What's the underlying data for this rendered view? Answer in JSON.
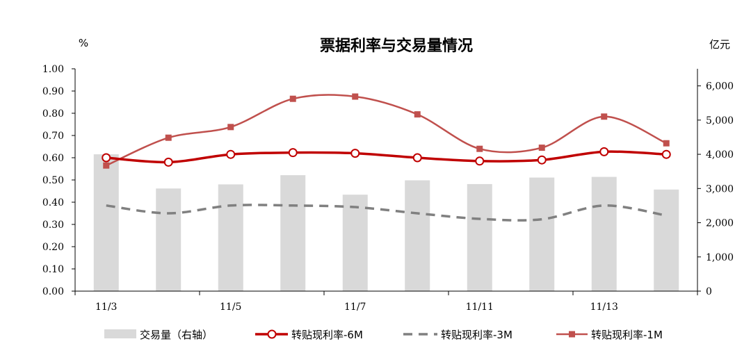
{
  "chart_data": {
    "type": "bar+line",
    "title": "票据利率与交易量情况",
    "left_unit": "%",
    "right_unit": "亿元",
    "categories": [
      "11/3",
      "",
      "11/5",
      "",
      "11/7",
      "",
      "11/11",
      "",
      "11/13",
      ""
    ],
    "ylim_left": [
      0,
      1.0
    ],
    "ylim_right": [
      0,
      6500
    ],
    "left_ticks": [
      "0.00",
      "0.10",
      "0.20",
      "0.30",
      "0.40",
      "0.50",
      "0.60",
      "0.70",
      "0.80",
      "0.90",
      "1.00"
    ],
    "right_ticks": [
      "0",
      "1,000",
      "2,000",
      "3,000",
      "4,000",
      "5,000",
      "6,000"
    ],
    "bars": {
      "name": "交易量（右轴）",
      "axis": "right",
      "color": "#d9d9d9",
      "values": [
        4000,
        3000,
        3120,
        3390,
        2820,
        3240,
        3130,
        3320,
        3340,
        2970
      ]
    },
    "series": [
      {
        "name": "转贴现利率-6M",
        "axis": "left",
        "style": "solid-circle",
        "color": "#c00000",
        "values": [
          0.6,
          0.58,
          0.615,
          0.623,
          0.62,
          0.6,
          0.585,
          0.59,
          0.627,
          0.615
        ]
      },
      {
        "name": "转贴现利率-3M",
        "axis": "left",
        "style": "dashed",
        "color": "#808080",
        "values": [
          0.385,
          0.35,
          0.385,
          0.385,
          0.378,
          0.35,
          0.325,
          0.323,
          0.385,
          0.34
        ]
      },
      {
        "name": "转贴现利率-1M",
        "axis": "left",
        "style": "solid-square",
        "color": "#c0504d",
        "values": [
          0.565,
          0.69,
          0.738,
          0.865,
          0.875,
          0.795,
          0.64,
          0.645,
          0.785,
          0.665
        ]
      }
    ],
    "legend_position": "bottom"
  }
}
